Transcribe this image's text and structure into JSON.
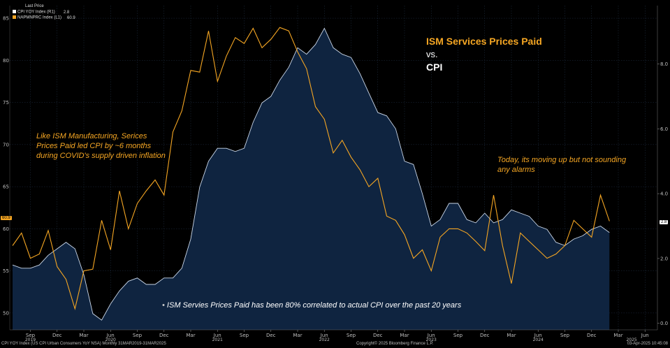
{
  "legend": {
    "title": "Last Price",
    "items": [
      {
        "label": "CPI YOY Index (R1)",
        "value": "2.8",
        "color": "#ffffff"
      },
      {
        "label": "NAPMNPRC Index (L1)",
        "value": "60.9",
        "color": "#f5a623"
      }
    ]
  },
  "headline": {
    "line1": "ISM Services Prices Paid",
    "line2": "vs.",
    "line3": "CPI"
  },
  "annotations": {
    "left": [
      "Like ISM Manufacturing, Serices",
      "Prices Paid led CPI by ~6 months",
      "during COVID's supply driven inflation"
    ],
    "right": [
      "Today, its moving up but not sounding",
      "any alarms"
    ],
    "bottom": "ISM Servies Prices Paid has been 80% correlated to actual CPI over the past 20 years"
  },
  "footer": {
    "left": "CPI YOY Index (US CPI Urban Consumers YoY NSA)  Monthly 31MAR2019-31MAR2025",
    "center": "Copyright© 2025 Bloomberg Finance L.P.",
    "right": "03-Apr-2025 10:45:08"
  },
  "last_labels": {
    "left": "60.9",
    "right": "2.8"
  },
  "colors": {
    "ism": "#f5a623",
    "cpi_line": "#c9d6e8",
    "cpi_fill": "#0f2440",
    "background": "#000000",
    "grid": "#1f2f44"
  },
  "chart_data": {
    "type": "line",
    "x": [
      "2019-07",
      "2019-08",
      "2019-09",
      "2019-10",
      "2019-11",
      "2019-12",
      "2020-01",
      "2020-02",
      "2020-03",
      "2020-04",
      "2020-05",
      "2020-06",
      "2020-07",
      "2020-08",
      "2020-09",
      "2020-10",
      "2020-11",
      "2020-12",
      "2021-01",
      "2021-02",
      "2021-03",
      "2021-04",
      "2021-05",
      "2021-06",
      "2021-07",
      "2021-08",
      "2021-09",
      "2021-10",
      "2021-11",
      "2021-12",
      "2022-01",
      "2022-02",
      "2022-03",
      "2022-04",
      "2022-05",
      "2022-06",
      "2022-07",
      "2022-08",
      "2022-09",
      "2022-10",
      "2022-11",
      "2022-12",
      "2023-01",
      "2023-02",
      "2023-03",
      "2023-04",
      "2023-05",
      "2023-06",
      "2023-07",
      "2023-08",
      "2023-09",
      "2023-10",
      "2023-11",
      "2023-12",
      "2024-01",
      "2024-02",
      "2024-03",
      "2024-04",
      "2024-05",
      "2024-06",
      "2024-07",
      "2024-08",
      "2024-09",
      "2024-10",
      "2024-11",
      "2024-12",
      "2025-01",
      "2025-02",
      "2025-03"
    ],
    "series": [
      {
        "name": "CPI YOY Index (R1)",
        "axis": "right",
        "values": [
          1.8,
          1.7,
          1.7,
          1.8,
          2.1,
          2.3,
          2.5,
          2.3,
          1.5,
          0.3,
          0.1,
          0.6,
          1.0,
          1.3,
          1.4,
          1.2,
          1.2,
          1.4,
          1.4,
          1.7,
          2.6,
          4.2,
          5.0,
          5.4,
          5.4,
          5.3,
          5.4,
          6.2,
          6.8,
          7.0,
          7.5,
          7.9,
          8.5,
          8.3,
          8.6,
          9.1,
          8.5,
          8.3,
          8.2,
          7.7,
          7.1,
          6.5,
          6.4,
          6.0,
          5.0,
          4.9,
          4.0,
          3.0,
          3.2,
          3.7,
          3.7,
          3.2,
          3.1,
          3.4,
          3.1,
          3.2,
          3.5,
          3.4,
          3.3,
          3.0,
          2.9,
          2.5,
          2.4,
          2.6,
          2.7,
          2.9,
          3.0,
          2.8,
          null
        ]
      },
      {
        "name": "NAPMNPRC Index (L1)",
        "axis": "left",
        "values": [
          58.0,
          59.5,
          56.5,
          57.0,
          59.8,
          55.5,
          54.0,
          50.5,
          55.0,
          55.2,
          61.0,
          57.5,
          64.5,
          60.0,
          63.0,
          64.5,
          65.8,
          64.0,
          71.5,
          74.0,
          78.8,
          78.6,
          83.5,
          77.5,
          80.5,
          82.7,
          82.0,
          83.8,
          81.5,
          82.5,
          83.9,
          83.5,
          81.0,
          79.0,
          74.5,
          73.0,
          69.0,
          70.5,
          68.5,
          67.0,
          65.0,
          66.0,
          61.5,
          61.0,
          59.3,
          56.5,
          57.5,
          55.0,
          59.0,
          60.0,
          60.0,
          59.5,
          58.5,
          57.4,
          64.0,
          58.0,
          53.5,
          59.5,
          58.5,
          57.5,
          56.5,
          57.0,
          58.0,
          61.0,
          60.0,
          59.0,
          64.0,
          60.9,
          null
        ]
      }
    ],
    "left_axis": {
      "ticks": [
        50,
        55,
        60,
        65,
        70,
        75,
        80,
        85
      ],
      "range": [
        48,
        86.5
      ]
    },
    "right_axis": {
      "ticks": [
        "0.0",
        "2.0",
        "4.0",
        "6.0",
        "8.0"
      ],
      "range": [
        -0.2,
        9.8
      ]
    },
    "x_tick_labels": [
      "Sep",
      "Dec",
      "Mar",
      "Jun",
      "Sep",
      "Dec",
      "Mar",
      "Jun",
      "Sep",
      "Dec",
      "Mar",
      "Jun",
      "Sep",
      "Dec",
      "Mar",
      "Jun",
      "Sep",
      "Dec",
      "Mar",
      "Jun",
      "Sep",
      "Dec",
      "Mar",
      "Jun"
    ],
    "year_labels": [
      "2019",
      "2020",
      "2021",
      "2022",
      "2023",
      "2024",
      "2025"
    ],
    "grid": true
  }
}
